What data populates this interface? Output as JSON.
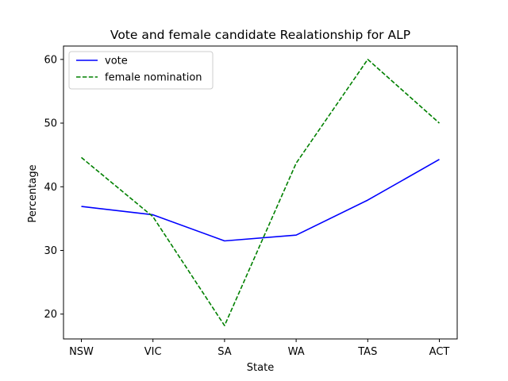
{
  "chart_data": {
    "type": "line",
    "title": "Vote and female candidate Realationship for ALP",
    "xlabel": "State",
    "ylabel": "Percentage",
    "categories": [
      "NSW",
      "VIC",
      "SA",
      "WA",
      "TAS",
      "ACT"
    ],
    "series": [
      {
        "name": "vote",
        "values": [
          36.9,
          35.6,
          31.5,
          32.4,
          37.9,
          44.3
        ],
        "color": "#0000ff",
        "style": "solid"
      },
      {
        "name": "female nomination",
        "values": [
          44.6,
          35.3,
          18.2,
          43.7,
          60.0,
          50.0
        ],
        "color": "#008000",
        "style": "dashed"
      }
    ],
    "yticks": [
      20,
      30,
      40,
      50,
      60
    ],
    "ylim": [
      16.1,
      62.1
    ],
    "grid": false,
    "legend_position": "top-left"
  }
}
